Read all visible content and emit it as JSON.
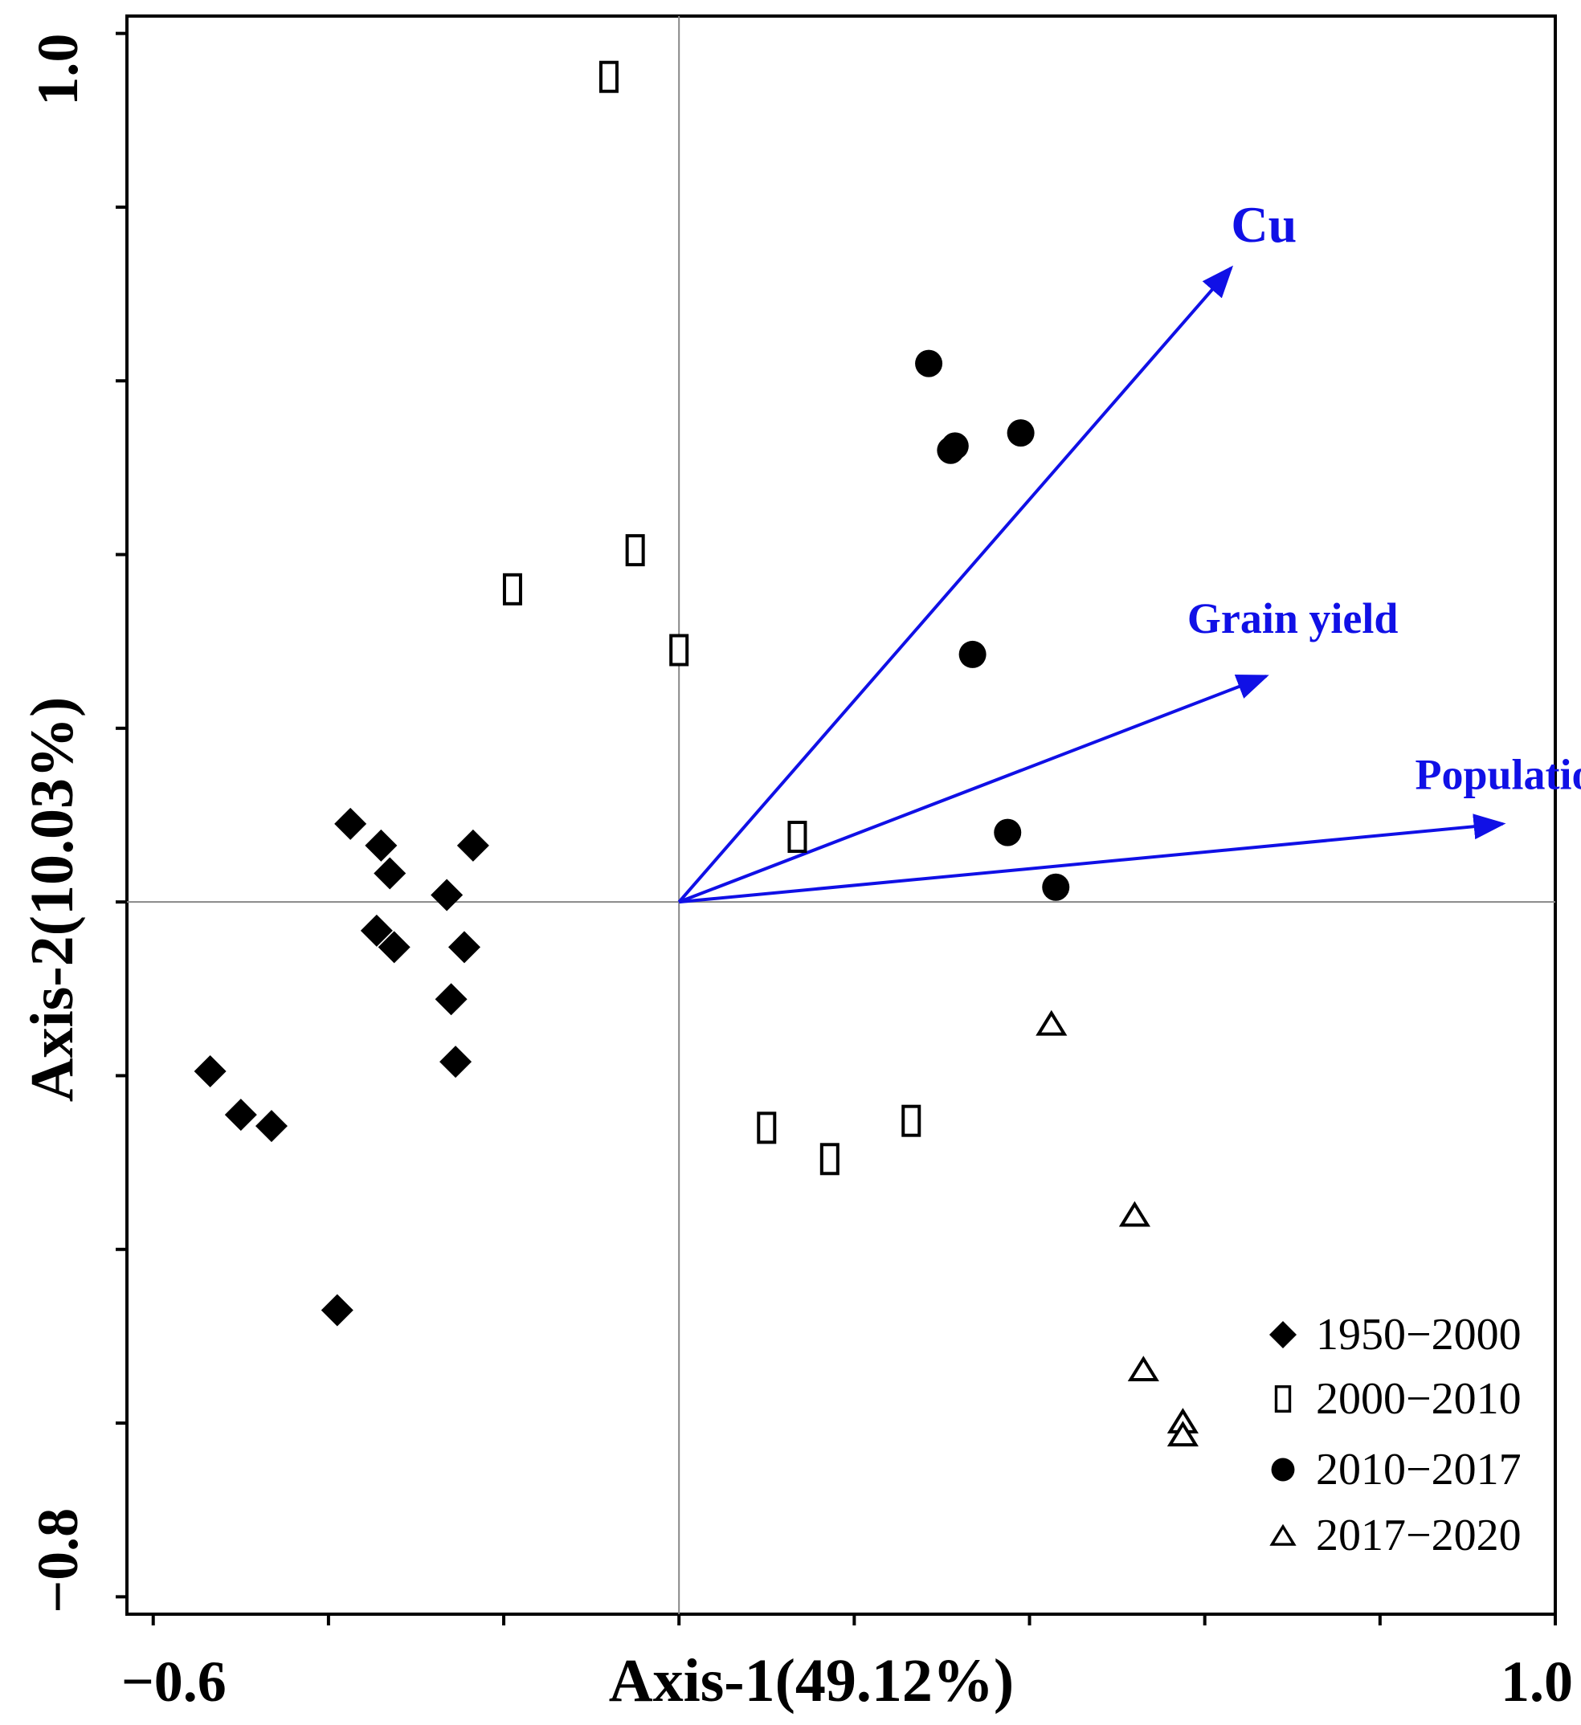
{
  "chart_data": {
    "type": "scatter",
    "title": "",
    "xlabel": "Axis-1(49.12%)",
    "ylabel": "Axis-2(10.03%)",
    "xlim": [
      -0.63,
      1.0
    ],
    "ylim": [
      -0.82,
      1.02
    ],
    "grid": false,
    "legend_position": "bottom-right",
    "x_tick_labels": [
      {
        "value": -0.6,
        "label": "−0.6"
      },
      {
        "value": 1.0,
        "label": "1.0"
      }
    ],
    "y_tick_labels": [
      {
        "value": 1.0,
        "label": "1.0"
      },
      {
        "value": -0.8,
        "label": "−0.8"
      }
    ],
    "x_ticks": [
      -0.6,
      -0.4,
      -0.2,
      0.0,
      0.2,
      0.4,
      0.6,
      0.8,
      1.0
    ],
    "y_ticks": [
      1.0,
      0.8,
      0.6,
      0.4,
      0.2,
      0.0,
      -0.2,
      -0.4,
      -0.6,
      -0.8
    ],
    "series": [
      {
        "name": "1950−2000",
        "marker": "diamond",
        "points": [
          [
            -0.375,
            0.09
          ],
          [
            -0.34,
            0.065
          ],
          [
            -0.33,
            0.033
          ],
          [
            -0.265,
            0.008
          ],
          [
            -0.235,
            0.065
          ],
          [
            -0.345,
            -0.033
          ],
          [
            -0.325,
            -0.052
          ],
          [
            -0.245,
            -0.052
          ],
          [
            -0.26,
            -0.112
          ],
          [
            -0.255,
            -0.184
          ],
          [
            -0.535,
            -0.195
          ],
          [
            -0.5,
            -0.245
          ],
          [
            -0.465,
            -0.258
          ],
          [
            -0.39,
            -0.47
          ]
        ]
      },
      {
        "name": "2000−2010",
        "marker": "open-rect",
        "points": [
          [
            -0.08,
            0.95
          ],
          [
            -0.05,
            0.405
          ],
          [
            -0.19,
            0.36
          ],
          [
            0.0,
            0.29
          ],
          [
            0.135,
            0.075
          ],
          [
            0.1,
            -0.26
          ],
          [
            0.172,
            -0.296
          ],
          [
            0.265,
            -0.252
          ]
        ]
      },
      {
        "name": "2010−2017",
        "marker": "circle",
        "points": [
          [
            0.285,
            0.62
          ],
          [
            0.31,
            0.52
          ],
          [
            0.315,
            0.525
          ],
          [
            0.39,
            0.54
          ],
          [
            0.335,
            0.285
          ],
          [
            0.375,
            0.08
          ],
          [
            0.43,
            0.017
          ]
        ]
      },
      {
        "name": "2017−2020",
        "marker": "open-triangle",
        "points": [
          [
            0.425,
            -0.14
          ],
          [
            0.52,
            -0.36
          ],
          [
            0.53,
            -0.538
          ],
          [
            0.575,
            -0.598
          ],
          [
            0.575,
            -0.613
          ]
        ]
      }
    ],
    "vectors": [
      {
        "name": "Cu",
        "x": 0.63,
        "y": 0.73,
        "label_x": 0.63,
        "label_y": 0.76,
        "label_size": 64
      },
      {
        "name": "Grain yield",
        "x": 0.67,
        "y": 0.26,
        "label_x": 0.58,
        "label_y": 0.31,
        "label_size": 54
      },
      {
        "name": "Population",
        "x": 0.94,
        "y": 0.09,
        "label_x": 0.84,
        "label_y": 0.13,
        "label_size": 54
      }
    ],
    "colors": {
      "vector": "#1010e6",
      "axis": "#000000",
      "zero_lines": "#888888"
    }
  }
}
